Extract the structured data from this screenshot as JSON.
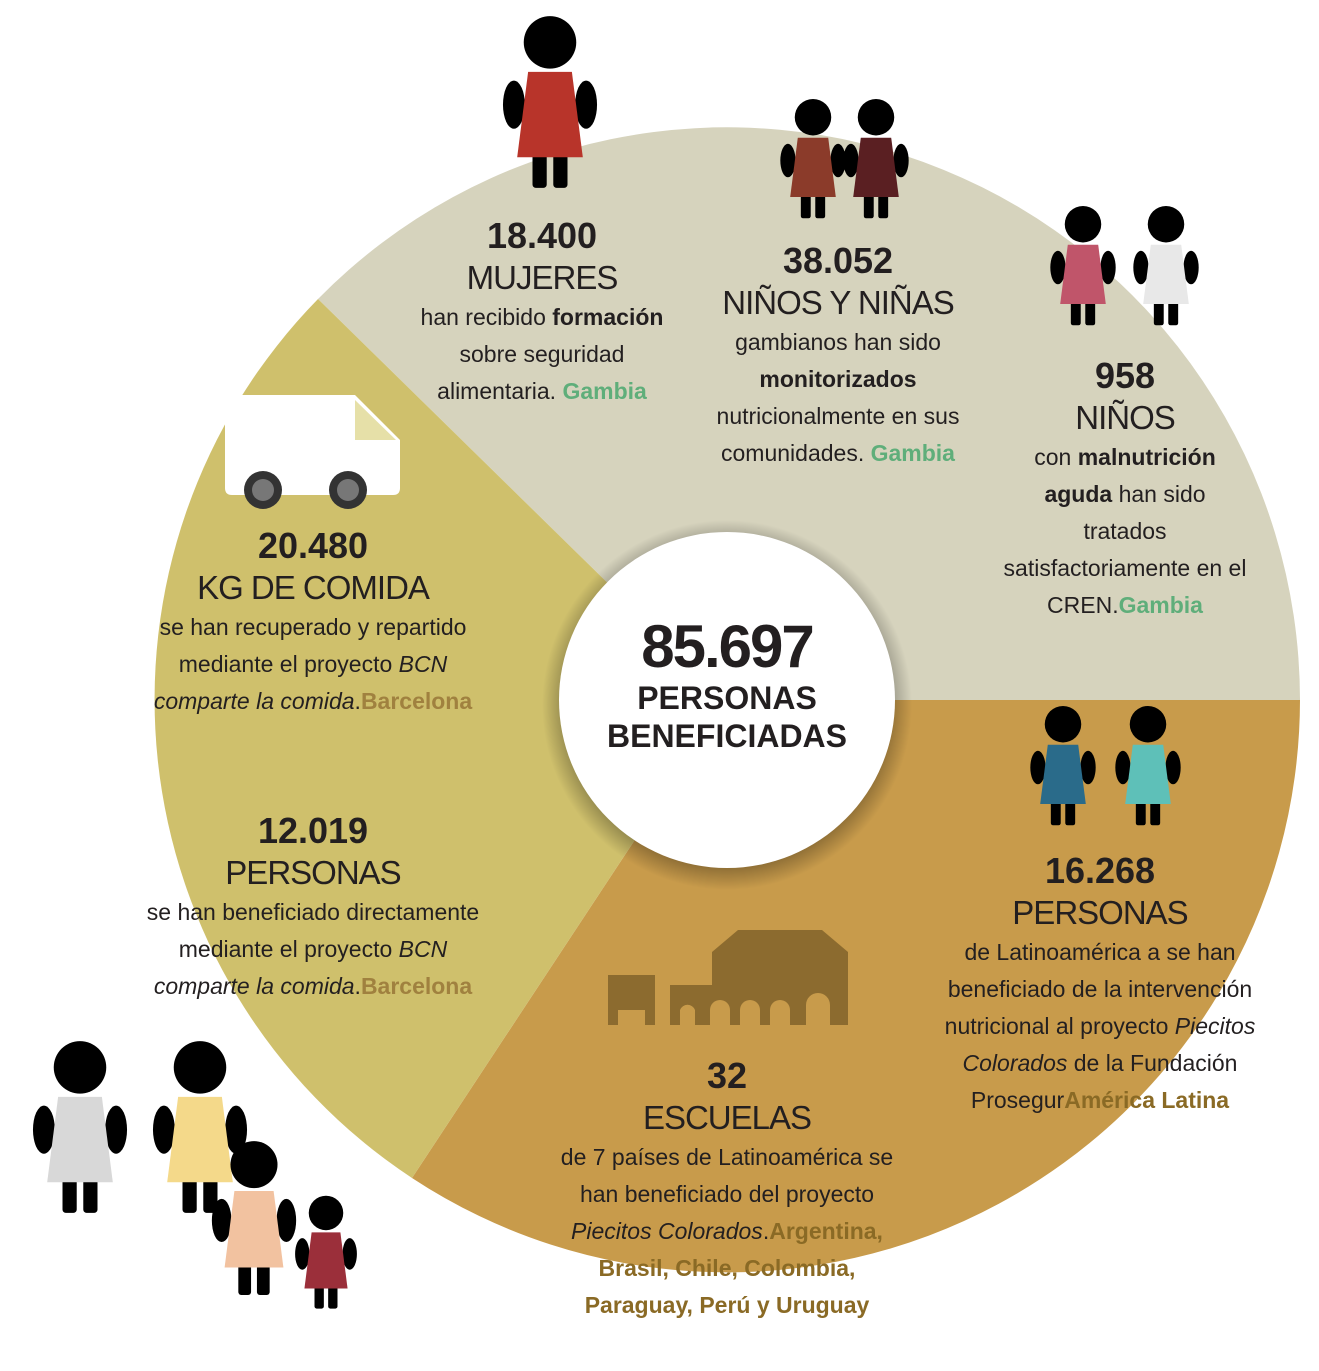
{
  "center": {
    "number": "85.697",
    "label": "PERSONAS BENEFICIADAS"
  },
  "blocks": [
    {
      "number": "18.400",
      "label": "MUJERES",
      "text": [
        "han recibido ",
        "formación",
        " sobre seguridad alimentaria. "
      ],
      "place": "Gambia"
    },
    {
      "number": "38.052",
      "label": "NIÑOS Y NIÑAS",
      "text": [
        "gambianos han sido ",
        "monitorizados",
        " nutricionalmente en sus comunidades. "
      ],
      "place": "Gambia"
    },
    {
      "number": "958",
      "label": "NIÑOS",
      "text": [
        "con ",
        "malnutrición aguda",
        " han sido tratados satisfactoriamente en el CREN."
      ],
      "place": "Gambia"
    },
    {
      "number": "20.480",
      "label": "KG DE COMIDA",
      "text": [
        "se han recuperado y repartido mediante el proyecto ",
        "BCN comparte la comida",
        "."
      ],
      "place": "Barcelona"
    },
    {
      "number": "12.019",
      "label": "PERSONAS",
      "text": [
        "se han beneficiado directamente mediante el proyecto ",
        "BCN comparte la comida",
        "."
      ],
      "place": "Barcelona"
    },
    {
      "number": "32",
      "label": "ESCUELAS",
      "text": [
        "de 7 países de Latinoamérica se han beneficiado del proyecto ",
        "Piecitos Colorados",
        "."
      ],
      "place": "Argentina, Brasil, Chile, Colombia, Paraguay, Perú y Uruguay"
    },
    {
      "number": "16.268",
      "label": "PERSONAS",
      "text": [
        "de Latinoamérica a se han beneficiado de la intervención nutricional al proyecto ",
        "Piecitos Colorados",
        " de la Fundación Prosegur"
      ],
      "place": "América Latina"
    }
  ]
}
